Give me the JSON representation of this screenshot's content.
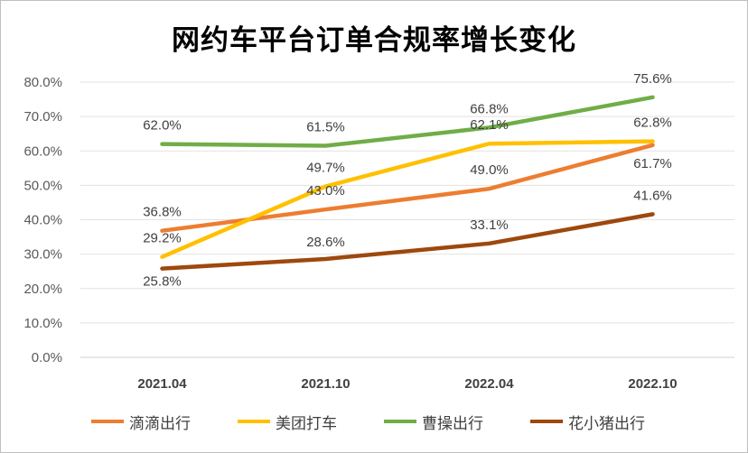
{
  "chart_data": {
    "type": "line",
    "title": "网约车平台订单合规率增长变化",
    "xlabel": "",
    "ylabel": "",
    "categories": [
      "2021.04",
      "2021.10",
      "2022.04",
      "2022.10"
    ],
    "ylim": [
      0,
      80
    ],
    "yticks": [
      "0.0%",
      "10.0%",
      "20.0%",
      "30.0%",
      "40.0%",
      "50.0%",
      "60.0%",
      "70.0%",
      "80.0%"
    ],
    "grid": true,
    "legend_position": "bottom",
    "series": [
      {
        "name": "滴滴出行",
        "color": "#ED7D31",
        "values": [
          36.8,
          43.0,
          49.0,
          61.7
        ],
        "labels": [
          "36.8%",
          "43.0%",
          "49.0%",
          "61.7%"
        ]
      },
      {
        "name": "美团打车",
        "color": "#FFC000",
        "values": [
          29.2,
          49.7,
          62.1,
          62.8
        ],
        "labels": [
          "29.2%",
          "49.7%",
          "62.1%",
          "62.8%"
        ]
      },
      {
        "name": "曹操出行",
        "color": "#70AD47",
        "values": [
          62.0,
          61.5,
          66.8,
          75.6
        ],
        "labels": [
          "62.0%",
          "61.5%",
          "66.8%",
          "75.6%"
        ]
      },
      {
        "name": "花小猪出行",
        "color": "#9E480E",
        "values": [
          25.8,
          28.6,
          33.1,
          41.6
        ],
        "labels": [
          "25.8%",
          "28.6%",
          "33.1%",
          "41.6%"
        ]
      }
    ]
  }
}
